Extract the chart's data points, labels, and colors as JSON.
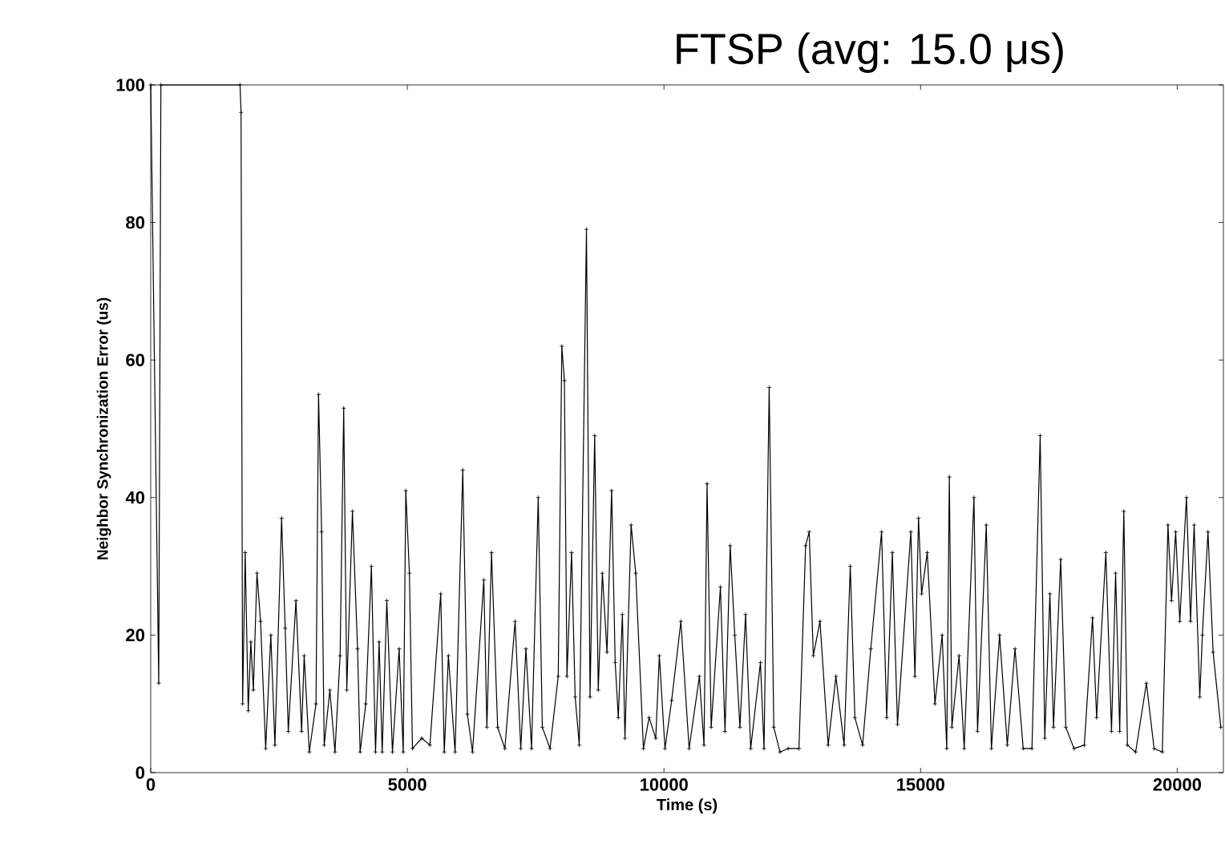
{
  "chart_data": {
    "type": "line",
    "title": "FTSP (avg: 15.0 μs)",
    "xlabel": "Time (s)",
    "ylabel": "Neighbor Synchronization Error (us)",
    "xlim": [
      0,
      20900
    ],
    "ylim": [
      0,
      100
    ],
    "xticks": [
      0,
      5000,
      10000,
      15000,
      20000
    ],
    "yticks": [
      0,
      20,
      40,
      60,
      80,
      100
    ],
    "marker": "cross",
    "line_style": "solid",
    "series": [
      {
        "color": "#000000",
        "x": [
          0,
          156,
          198,
          1740,
          1760,
          1790,
          1840,
          1900,
          1950,
          2000,
          2070,
          2140,
          2240,
          2340,
          2420,
          2550,
          2620,
          2680,
          2830,
          2940,
          2990,
          3090,
          3220,
          3270,
          3330,
          3380,
          3490,
          3590,
          3690,
          3760,
          3820,
          3930,
          4030,
          4080,
          4190,
          4300,
          4380,
          4450,
          4510,
          4600,
          4710,
          4840,
          4920,
          4970,
          5040,
          5100,
          5280,
          5440,
          5650,
          5720,
          5800,
          5930,
          6080,
          6170,
          6270,
          6490,
          6550,
          6640,
          6760,
          6900,
          7100,
          7210,
          7310,
          7420,
          7550,
          7630,
          7780,
          7940,
          8010,
          8060,
          8110,
          8200,
          8270,
          8350,
          8490,
          8560,
          8650,
          8720,
          8800,
          8890,
          8980,
          9050,
          9110,
          9190,
          9240,
          9360,
          9450,
          9600,
          9710,
          9840,
          9910,
          10020,
          10150,
          10330,
          10490,
          10690,
          10780,
          10840,
          10920,
          11100,
          11190,
          11290,
          11380,
          11480,
          11590,
          11690,
          11880,
          11950,
          12050,
          12140,
          12260,
          12420,
          12630,
          12760,
          12830,
          12910,
          13040,
          13200,
          13350,
          13510,
          13630,
          13720,
          13870,
          14030,
          14240,
          14340,
          14450,
          14550,
          14810,
          14890,
          14960,
          15020,
          15130,
          15280,
          15420,
          15510,
          15560,
          15610,
          15750,
          15850,
          16040,
          16110,
          16280,
          16380,
          16540,
          16690,
          16840,
          17000,
          17170,
          17330,
          17420,
          17520,
          17590,
          17730,
          17830,
          17990,
          18190,
          18350,
          18430,
          18610,
          18720,
          18800,
          18880,
          18960,
          19030,
          19190,
          19400,
          19550,
          19710,
          19820,
          19890,
          19970,
          20050,
          20180,
          20260,
          20330,
          20440,
          20490,
          20600,
          20700,
          20850
        ],
        "values": [
          100,
          13,
          100,
          100,
          96,
          10,
          32,
          9,
          19,
          12,
          29,
          22,
          3.5,
          20,
          4,
          37,
          21,
          6,
          25,
          6,
          17,
          3,
          10,
          55,
          35,
          4,
          12,
          3,
          17,
          53,
          12,
          38,
          18,
          3,
          10,
          30,
          3,
          19,
          3,
          25,
          3,
          18,
          3,
          41,
          29,
          3.5,
          5,
          4,
          26,
          3,
          17,
          3,
          44,
          8.5,
          3,
          28,
          6.6,
          32,
          6.6,
          3.5,
          22,
          3.5,
          18,
          3.5,
          40,
          6.6,
          3.5,
          14,
          62,
          57,
          14,
          32,
          11,
          4,
          79,
          11,
          49,
          12,
          29,
          17.5,
          41,
          16,
          8,
          23,
          5,
          36,
          29,
          3.5,
          8,
          5,
          17,
          3.5,
          10.5,
          22,
          3.5,
          14,
          4,
          42,
          6.6,
          27,
          6,
          33,
          20,
          6.6,
          23,
          3.5,
          16,
          3.5,
          56,
          6.6,
          3,
          3.5,
          3.5,
          33,
          35,
          17,
          22,
          4,
          14,
          4,
          30,
          8,
          4,
          18,
          35,
          8,
          32,
          7,
          35,
          14,
          37,
          26,
          32,
          10,
          20,
          3.5,
          43,
          6.6,
          17,
          3.5,
          40,
          6,
          36,
          3.5,
          20,
          4,
          18,
          3.5,
          3.5,
          49,
          5,
          26,
          6.6,
          31,
          6.6,
          3.5,
          4,
          22.5,
          8,
          32,
          6,
          29,
          6,
          38,
          4,
          3,
          13,
          3.5,
          3,
          36,
          25,
          35,
          22,
          40,
          22,
          36,
          11,
          20,
          35,
          17.5,
          6.6
        ]
      }
    ]
  }
}
